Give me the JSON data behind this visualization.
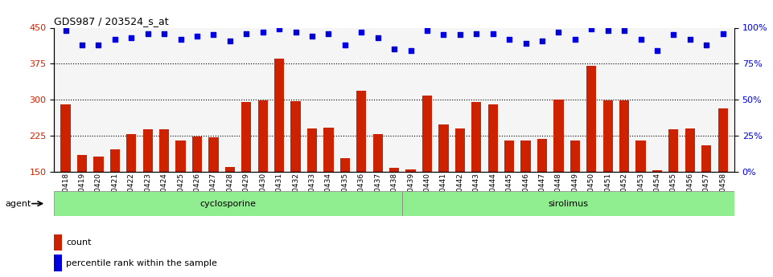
{
  "title": "GDS987 / 203524_s_at",
  "samples": [
    "GSM30418",
    "GSM30419",
    "GSM30420",
    "GSM30421",
    "GSM30422",
    "GSM30423",
    "GSM30424",
    "GSM30425",
    "GSM30426",
    "GSM30427",
    "GSM30428",
    "GSM30429",
    "GSM30430",
    "GSM30431",
    "GSM30432",
    "GSM30433",
    "GSM30434",
    "GSM30435",
    "GSM30436",
    "GSM30437",
    "GSM30438",
    "GSM30439",
    "GSM30440",
    "GSM30441",
    "GSM30442",
    "GSM30443",
    "GSM30444",
    "GSM30445",
    "GSM30446",
    "GSM30447",
    "GSM30448",
    "GSM30449",
    "GSM30450",
    "GSM30451",
    "GSM30452",
    "GSM30453",
    "GSM30454",
    "GSM30455",
    "GSM30456",
    "GSM30457",
    "GSM30458"
  ],
  "counts": [
    290,
    185,
    182,
    196,
    228,
    238,
    238,
    215,
    224,
    222,
    160,
    295,
    298,
    385,
    297,
    240,
    242,
    178,
    318,
    228,
    158,
    155,
    308,
    248,
    240,
    295,
    290,
    215,
    215,
    218,
    300,
    215,
    370,
    298,
    298,
    215,
    153,
    238,
    240,
    205,
    282
  ],
  "percentiles": [
    98,
    88,
    88,
    92,
    93,
    96,
    96,
    92,
    94,
    95,
    91,
    96,
    97,
    99,
    97,
    94,
    96,
    88,
    97,
    93,
    85,
    84,
    98,
    95,
    95,
    96,
    96,
    92,
    89,
    91,
    97,
    92,
    99,
    98,
    98,
    92,
    84,
    95,
    92,
    88,
    96
  ],
  "groups": [
    {
      "name": "cyclosporine",
      "start": 0,
      "end": 21,
      "color": "#90ee90"
    },
    {
      "name": "sirolimus",
      "start": 21,
      "end": 41,
      "color": "#90ee90"
    }
  ],
  "bar_color": "#cc2200",
  "dot_color": "#0000dd",
  "ylim_left": [
    150,
    450
  ],
  "ylim_right": [
    0,
    100
  ],
  "yticks_left": [
    150,
    225,
    300,
    375,
    450
  ],
  "yticks_right": [
    0,
    25,
    50,
    75,
    100
  ],
  "grid_lines": [
    225,
    300,
    375
  ],
  "background_color": "#f5f5f5",
  "legend_count_label": "count",
  "legend_pct_label": "percentile rank within the sample"
}
